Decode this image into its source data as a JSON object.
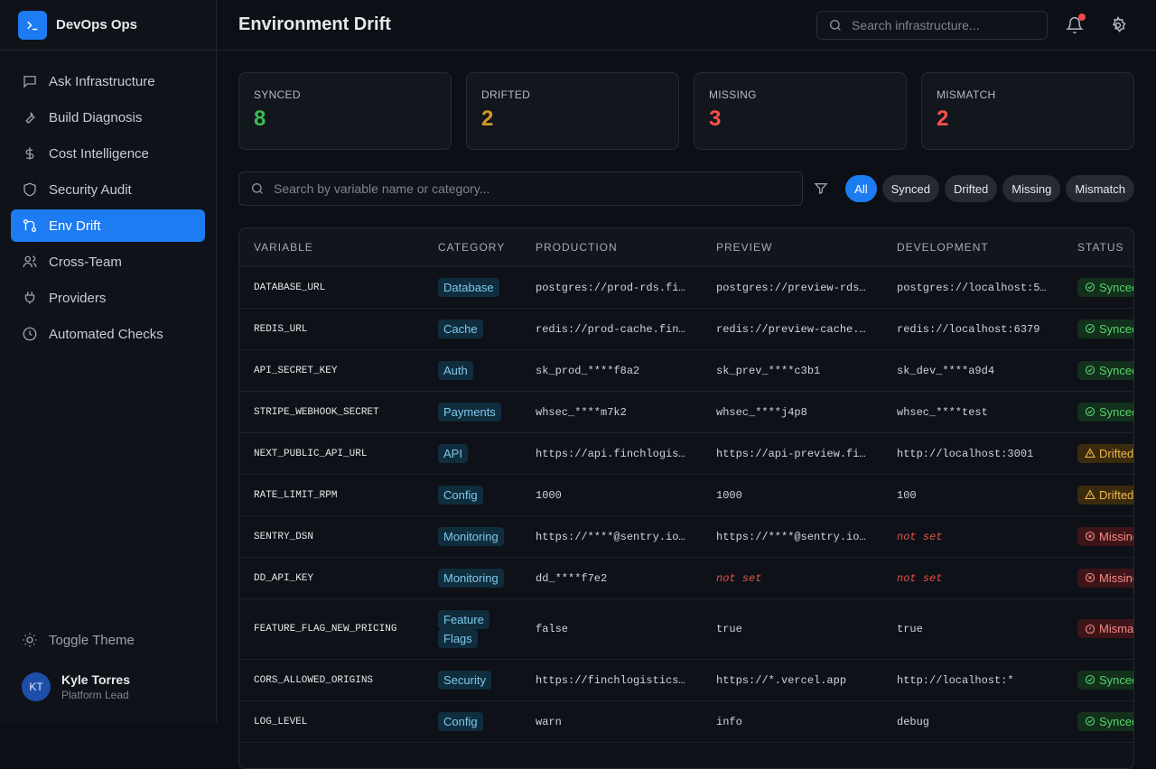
{
  "sidebar": {
    "brand": "DevOps Ops",
    "nav": [
      "Ask Infrastructure",
      "Build Diagnosis",
      "Cost Intelligence",
      "Security Audit",
      "Env Drift",
      "Cross-Team",
      "Providers",
      "Automated Checks"
    ],
    "active": 4,
    "toggle_theme": "Toggle Theme",
    "user": {
      "initials": "KT",
      "name": "Kyle Torres",
      "role": "Platform Lead"
    }
  },
  "header": {
    "title": "Environment Drift",
    "search_placeholder": "Search infrastructure..."
  },
  "stats": [
    {
      "label": "SYNCED",
      "value": 8,
      "tone": "success"
    },
    {
      "label": "DRIFTED",
      "value": 2,
      "tone": "warning"
    },
    {
      "label": "MISSING",
      "value": 3,
      "tone": "danger"
    },
    {
      "label": "MISMATCH",
      "value": 2,
      "tone": "danger"
    }
  ],
  "filters": {
    "search_placeholder": "Search by variable name or category...",
    "chips": [
      "All",
      "Synced",
      "Drifted",
      "Missing",
      "Mismatch"
    ],
    "active": 0
  },
  "table": {
    "columns": [
      "VARIABLE",
      "CATEGORY",
      "PRODUCTION",
      "PREVIEW",
      "DEVELOPMENT",
      "STATUS"
    ],
    "rows": [
      {
        "variable": "DATABASE_URL",
        "category": "Database",
        "envs": [
          "postgres://prod-rds.fi…",
          "postgres://preview-rds…",
          "postgres://localhost:5…"
        ],
        "status": {
          "label": "Synced",
          "tone": "success",
          "icon": "check"
        }
      },
      {
        "variable": "REDIS_URL",
        "category": "Cache",
        "envs": [
          "redis://prod-cache.fin…",
          "redis://preview-cache.…",
          "redis://localhost:6379"
        ],
        "status": {
          "label": "Synced",
          "tone": "success",
          "icon": "check"
        }
      },
      {
        "variable": "API_SECRET_KEY",
        "category": "Auth",
        "envs": [
          "sk_prod_****f8a2",
          "sk_prev_****c3b1",
          "sk_dev_****a9d4"
        ],
        "status": {
          "label": "Synced",
          "tone": "success",
          "icon": "check"
        }
      },
      {
        "variable": "STRIPE_WEBHOOK_SECRET",
        "category": "Payments",
        "envs": [
          "whsec_****m7k2",
          "whsec_****j4p8",
          "whsec_****test"
        ],
        "status": {
          "label": "Synced",
          "tone": "success",
          "icon": "check"
        }
      },
      {
        "variable": "NEXT_PUBLIC_API_URL",
        "category": "API",
        "envs": [
          "https://api.finchlogis…",
          "https://api-preview.fi…",
          "http://localhost:3001"
        ],
        "status": {
          "label": "Drifted",
          "tone": "warning",
          "icon": "triangle"
        }
      },
      {
        "variable": "RATE_LIMIT_RPM",
        "category": "Config",
        "envs": [
          "1000",
          "1000",
          "100"
        ],
        "status": {
          "label": "Drifted",
          "tone": "warning",
          "icon": "triangle"
        }
      },
      {
        "variable": "SENTRY_DSN",
        "category": "Monitoring",
        "envs": [
          "https://****@sentry.io…",
          "https://****@sentry.io…",
          {
            "text": "not set",
            "unset": true
          }
        ],
        "status": {
          "label": "Missing",
          "tone": "danger",
          "icon": "x"
        }
      },
      {
        "variable": "DD_API_KEY",
        "category": "Monitoring",
        "envs": [
          "dd_****f7e2",
          {
            "text": "not set",
            "unset": true
          },
          {
            "text": "not set",
            "unset": true
          }
        ],
        "status": {
          "label": "Missing",
          "tone": "danger",
          "icon": "x"
        }
      },
      {
        "variable": "FEATURE_FLAG_NEW_PRICING",
        "category": "Feature Flags",
        "envs": [
          "false",
          "true",
          "true"
        ],
        "status": {
          "label": "Mismatch",
          "tone": "danger",
          "icon": "alert"
        }
      },
      {
        "variable": "CORS_ALLOWED_ORIGINS",
        "category": "Security",
        "envs": [
          "https://finchlogistics…",
          "https://*.vercel.app",
          "http://localhost:*"
        ],
        "status": {
          "label": "Synced",
          "tone": "success",
          "icon": "check"
        }
      },
      {
        "variable": "LOG_LEVEL",
        "category": "Config",
        "envs": [
          "warn",
          "info",
          "debug"
        ],
        "status": {
          "label": "Synced",
          "tone": "success",
          "icon": "check"
        }
      }
    ]
  }
}
